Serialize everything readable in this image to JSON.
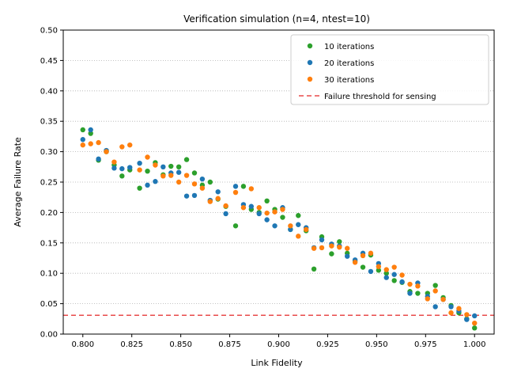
{
  "chart_data": {
    "type": "scatter",
    "title": "Verification simulation (n=4, ntest=10)",
    "xlabel": "Link Fidelity",
    "ylabel": "Average Failure Rate",
    "xlim": [
      0.79,
      1.01
    ],
    "ylim": [
      0.0,
      0.5
    ],
    "xticks": [
      "0.800",
      "0.825",
      "0.850",
      "0.875",
      "0.900",
      "0.925",
      "0.950",
      "0.975",
      "1.000"
    ],
    "yticks": [
      "0.00",
      "0.05",
      "0.10",
      "0.15",
      "0.20",
      "0.25",
      "0.30",
      "0.35",
      "0.40",
      "0.45",
      "0.50"
    ],
    "grid": "y-dotted",
    "legend_position": "top-right",
    "threshold": {
      "name": "Failure threshold for sensing",
      "value": 0.031,
      "color": "#e84a4a",
      "style": "dashed"
    },
    "series": [
      {
        "name": "10 iterations",
        "color": "#2ca02c",
        "x": [
          0.8,
          0.804,
          0.808,
          0.812,
          0.816,
          0.82,
          0.824,
          0.829,
          0.833,
          0.837,
          0.841,
          0.845,
          0.849,
          0.853,
          0.857,
          0.861,
          0.865,
          0.869,
          0.873,
          0.878,
          0.882,
          0.886,
          0.89,
          0.894,
          0.898,
          0.902,
          0.906,
          0.91,
          0.914,
          0.918,
          0.922,
          0.927,
          0.931,
          0.935,
          0.939,
          0.943,
          0.947,
          0.951,
          0.955,
          0.959,
          0.963,
          0.967,
          0.971,
          0.976,
          0.98,
          0.984,
          0.988,
          0.992,
          0.996,
          1.0
        ],
        "y": [
          0.336,
          0.33,
          0.286,
          0.3,
          0.278,
          0.26,
          0.27,
          0.24,
          0.268,
          0.282,
          0.262,
          0.276,
          0.275,
          0.287,
          0.265,
          0.245,
          0.25,
          0.222,
          0.21,
          0.178,
          0.243,
          0.205,
          0.2,
          0.219,
          0.205,
          0.192,
          0.172,
          0.195,
          0.17,
          0.107,
          0.16,
          0.132,
          0.152,
          0.133,
          0.12,
          0.11,
          0.13,
          0.105,
          0.1,
          0.088,
          0.085,
          0.07,
          0.067,
          0.067,
          0.08,
          0.06,
          0.047,
          0.035,
          0.025,
          0.01
        ]
      },
      {
        "name": "20 iterations",
        "color": "#1f77b4",
        "x": [
          0.8,
          0.804,
          0.808,
          0.812,
          0.816,
          0.82,
          0.824,
          0.829,
          0.833,
          0.837,
          0.841,
          0.845,
          0.849,
          0.853,
          0.857,
          0.861,
          0.865,
          0.869,
          0.873,
          0.878,
          0.882,
          0.886,
          0.89,
          0.894,
          0.898,
          0.902,
          0.906,
          0.91,
          0.914,
          0.918,
          0.922,
          0.927,
          0.931,
          0.935,
          0.939,
          0.943,
          0.947,
          0.951,
          0.955,
          0.959,
          0.963,
          0.967,
          0.971,
          0.976,
          0.98,
          0.984,
          0.988,
          0.992,
          0.996,
          1.0
        ],
        "y": [
          0.32,
          0.336,
          0.288,
          0.302,
          0.273,
          0.272,
          0.274,
          0.281,
          0.245,
          0.251,
          0.275,
          0.265,
          0.266,
          0.227,
          0.228,
          0.255,
          0.22,
          0.234,
          0.198,
          0.243,
          0.213,
          0.21,
          0.198,
          0.188,
          0.178,
          0.208,
          0.172,
          0.18,
          0.175,
          0.142,
          0.155,
          0.148,
          0.145,
          0.128,
          0.122,
          0.133,
          0.103,
          0.116,
          0.093,
          0.098,
          0.086,
          0.067,
          0.084,
          0.062,
          0.045,
          0.057,
          0.045,
          0.038,
          0.024,
          0.03
        ]
      },
      {
        "name": "30 iterations",
        "color": "#ff7f0e",
        "x": [
          0.8,
          0.804,
          0.808,
          0.812,
          0.816,
          0.82,
          0.824,
          0.829,
          0.833,
          0.837,
          0.841,
          0.845,
          0.849,
          0.853,
          0.857,
          0.861,
          0.865,
          0.869,
          0.873,
          0.878,
          0.882,
          0.886,
          0.89,
          0.894,
          0.898,
          0.902,
          0.906,
          0.91,
          0.914,
          0.918,
          0.922,
          0.927,
          0.931,
          0.935,
          0.939,
          0.943,
          0.947,
          0.951,
          0.955,
          0.959,
          0.963,
          0.967,
          0.971,
          0.976,
          0.98,
          0.984,
          0.988,
          0.992,
          0.996,
          1.0
        ],
        "y": [
          0.311,
          0.313,
          0.315,
          0.3,
          0.283,
          0.308,
          0.311,
          0.27,
          0.291,
          0.278,
          0.26,
          0.261,
          0.25,
          0.261,
          0.247,
          0.24,
          0.218,
          0.223,
          0.211,
          0.233,
          0.208,
          0.239,
          0.208,
          0.199,
          0.201,
          0.205,
          0.178,
          0.161,
          0.172,
          0.141,
          0.142,
          0.145,
          0.143,
          0.141,
          0.118,
          0.129,
          0.133,
          0.111,
          0.106,
          0.11,
          0.097,
          0.082,
          0.079,
          0.058,
          0.071,
          0.057,
          0.035,
          0.042,
          0.032,
          0.018
        ]
      }
    ]
  }
}
